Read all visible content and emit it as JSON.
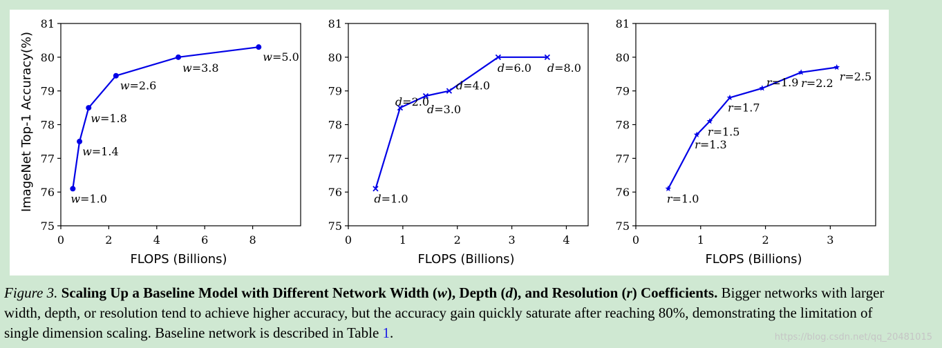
{
  "chart_data": [
    {
      "type": "line",
      "xlabel": "FLOPS (Billions)",
      "ylabel": "ImageNet Top-1 Accuracy(%)",
      "xlim": [
        0,
        10
      ],
      "ylim": [
        75,
        81
      ],
      "xticks": [
        0,
        2,
        4,
        6,
        8
      ],
      "yticks": [
        75,
        76,
        77,
        78,
        79,
        80,
        81
      ],
      "marker": "circle",
      "color": "#0000e6",
      "var": "w",
      "points": [
        {
          "x": 0.5,
          "y": 76.1,
          "label": "1.0"
        },
        {
          "x": 0.78,
          "y": 77.5,
          "label": "1.4"
        },
        {
          "x": 1.16,
          "y": 78.5,
          "label": "1.8"
        },
        {
          "x": 2.3,
          "y": 79.45,
          "label": "2.6"
        },
        {
          "x": 4.9,
          "y": 80.0,
          "label": "3.8"
        },
        {
          "x": 8.25,
          "y": 80.3,
          "label": "5.0"
        }
      ]
    },
    {
      "type": "line",
      "xlabel": "FLOPS (Billions)",
      "ylabel": "",
      "xlim": [
        0,
        4.4
      ],
      "ylim": [
        75,
        81
      ],
      "xticks": [
        0,
        1,
        2,
        3,
        4
      ],
      "yticks": [
        75,
        76,
        77,
        78,
        79,
        80,
        81
      ],
      "marker": "x",
      "color": "#0000e6",
      "var": "d",
      "points": [
        {
          "x": 0.5,
          "y": 76.1,
          "label": "1.0"
        },
        {
          "x": 0.95,
          "y": 78.5,
          "label": "2.0"
        },
        {
          "x": 1.42,
          "y": 78.85,
          "label": "3.0"
        },
        {
          "x": 1.85,
          "y": 79.0,
          "label": "4.0"
        },
        {
          "x": 2.75,
          "y": 80.0,
          "label": "6.0"
        },
        {
          "x": 3.65,
          "y": 80.0,
          "label": "8.0"
        }
      ]
    },
    {
      "type": "line",
      "xlabel": "FLOPS (Billions)",
      "ylabel": "",
      "xlim": [
        0,
        3.7
      ],
      "ylim": [
        75,
        81
      ],
      "xticks": [
        0,
        1,
        2,
        3
      ],
      "yticks": [
        75,
        76,
        77,
        78,
        79,
        80,
        81
      ],
      "marker": "star",
      "color": "#0000e6",
      "var": "r",
      "points": [
        {
          "x": 0.5,
          "y": 76.1,
          "label": "1.0"
        },
        {
          "x": 0.94,
          "y": 77.7,
          "label": "1.3"
        },
        {
          "x": 1.14,
          "y": 78.1,
          "label": "1.5"
        },
        {
          "x": 1.45,
          "y": 78.8,
          "label": "1.7"
        },
        {
          "x": 1.95,
          "y": 79.08,
          "label": "1.9"
        },
        {
          "x": 2.55,
          "y": 79.55,
          "label": "2.2"
        },
        {
          "x": 3.1,
          "y": 79.7,
          "label": "2.5"
        }
      ]
    }
  ],
  "caption": {
    "figure_label": "Figure 3.",
    "title_parts": [
      "Scaling Up a Baseline Model with Different Network Width (",
      "w",
      "), Depth (",
      "d",
      "), and Resolution (",
      "r",
      ") Coefficients."
    ],
    "body_before_link": "Bigger networks with larger width, depth, or resolution tend to achieve higher accuracy, but the accuracy gain quickly saturate after reaching 80%, demonstrating the limitation of single dimension scaling. Baseline network is described in Table ",
    "link_text": "1",
    "body_after_link": "."
  },
  "watermark": "https://blog.csdn.net/qq_20481015"
}
